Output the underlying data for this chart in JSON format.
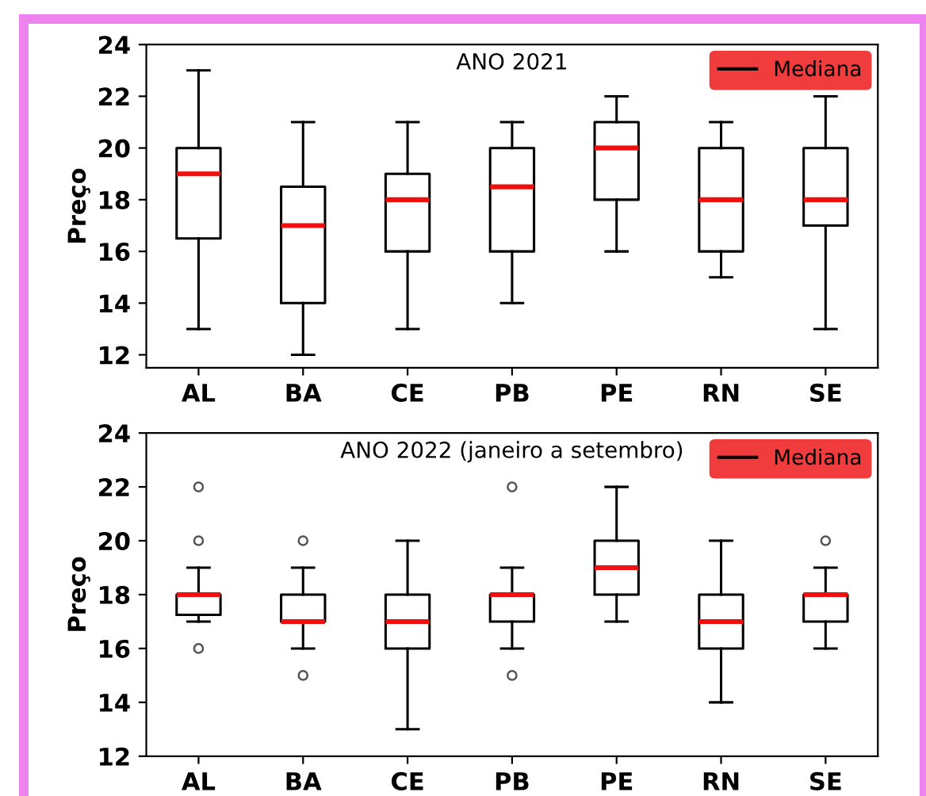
{
  "chart_data": [
    {
      "type": "box",
      "title": "ANO 2021",
      "ylabel": "Preço",
      "categories": [
        "AL",
        "BA",
        "CE",
        "PB",
        "PE",
        "RN",
        "SE"
      ],
      "ylim": [
        11.5,
        24
      ],
      "yticks": [
        12,
        14,
        16,
        18,
        20,
        22,
        24
      ],
      "legend": "top right",
      "grid": false,
      "series": [
        {
          "name": "Mediana",
          "color": "#000000",
          "boxes": [
            {
              "low": 13,
              "q1": 16.5,
              "median": 19,
              "q3": 20,
              "high": 23
            },
            {
              "low": 12,
              "q1": 14,
              "median": 17,
              "q3": 18.5,
              "high": 21
            },
            {
              "low": 13,
              "q1": 16,
              "median": 18,
              "q3": 19,
              "high": 21
            },
            {
              "low": 14,
              "q1": 16,
              "median": 18.5,
              "q3": 20,
              "high": 21
            },
            {
              "low": 16,
              "q1": 18,
              "median": 20,
              "q3": 21,
              "high": 22
            },
            {
              "low": 15,
              "q1": 16,
              "median": 18,
              "q3": 20,
              "high": 21
            },
            {
              "low": 13,
              "q1": 17,
              "median": 18,
              "q3": 20,
              "high": 22
            }
          ]
        }
      ]
    },
    {
      "type": "box",
      "title": "ANO 2022 (janeiro a setembro)",
      "ylabel": "Preço",
      "categories": [
        "AL",
        "BA",
        "CE",
        "PB",
        "PE",
        "RN",
        "SE"
      ],
      "ylim": [
        12,
        24
      ],
      "yticks": [
        12,
        14,
        16,
        18,
        20,
        22,
        24
      ],
      "legend": "top right",
      "grid": false,
      "series": [
        {
          "name": "Mediana",
          "color": "#000000",
          "boxes": [
            {
              "low": 17,
              "q1": 17.25,
              "median": 18,
              "q3": 18,
              "high": 19,
              "outliers": [
                22,
                20,
                16
              ]
            },
            {
              "low": 16,
              "q1": 17,
              "median": 17,
              "q3": 18,
              "high": 19,
              "outliers": [
                20,
                15
              ]
            },
            {
              "low": 13,
              "q1": 16,
              "median": 17,
              "q3": 18,
              "high": 20
            },
            {
              "low": 16,
              "q1": 17,
              "median": 18,
              "q3": 18,
              "high": 19,
              "outliers": [
                22,
                15
              ]
            },
            {
              "low": 17,
              "q1": 18,
              "median": 19,
              "q3": 20,
              "high": 22
            },
            {
              "low": 14,
              "q1": 16,
              "median": 17,
              "q3": 18,
              "high": 20
            },
            {
              "low": 16,
              "q1": 17,
              "median": 18,
              "q3": 18,
              "high": 19,
              "outliers": [
                20
              ]
            }
          ]
        }
      ]
    }
  ]
}
